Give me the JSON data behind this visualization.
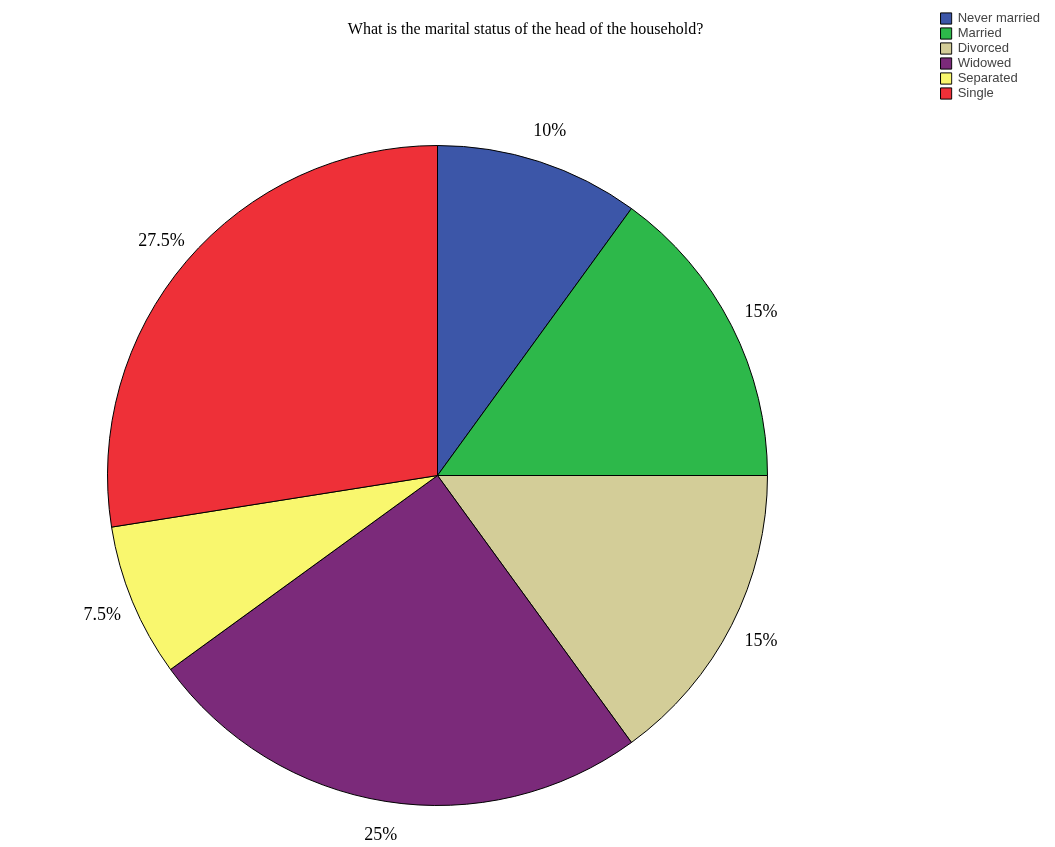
{
  "chart_data": {
    "type": "pie",
    "title": "What is the marital status of the head of the household?",
    "categories": [
      "Never married",
      "Married",
      "Divorced",
      "Widowed",
      "Separated",
      "Single"
    ],
    "values": [
      10,
      15,
      15,
      25,
      7.5,
      27.5
    ],
    "colors": [
      "#3c56a8",
      "#2db84a",
      "#d3cd98",
      "#7b2a7a",
      "#f9f76e",
      "#ee3038"
    ],
    "value_labels": [
      "10%",
      "15%",
      "15%",
      "25%",
      "7.5%",
      "27.5%"
    ],
    "legend": "top right"
  }
}
